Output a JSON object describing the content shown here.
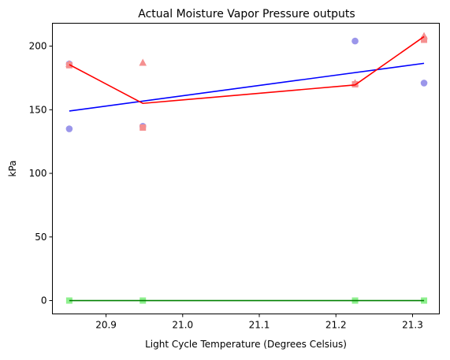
{
  "chart_data": {
    "type": "scatter",
    "title": "Actual Moisture Vapor Pressure outputs",
    "xlabel": "Light Cycle Temperature (Degrees Celsius)",
    "ylabel": "kPa",
    "xlim": [
      20.83,
      21.335
    ],
    "ylim": [
      -10.5,
      218
    ],
    "xticks": [
      20.9,
      21.0,
      21.1,
      21.2,
      21.3
    ],
    "xtick_labels": [
      "20.9",
      "21.0",
      "21.1",
      "21.2",
      "21.3"
    ],
    "yticks": [
      0,
      50,
      100,
      150,
      200
    ],
    "ytick_labels": [
      "0",
      "50",
      "100",
      "150",
      "200"
    ],
    "grid": false,
    "legend": "none",
    "series": [
      {
        "kind": "scatter",
        "marker": "circle",
        "color": "#9b96ea",
        "x": [
          20.852,
          20.852,
          20.948,
          21.225,
          21.315
        ],
        "y": [
          186,
          135,
          137,
          204,
          171
        ]
      },
      {
        "kind": "scatter",
        "marker": "triangle",
        "color": "#f59090",
        "x": [
          20.852,
          20.948,
          21.225,
          21.315
        ],
        "y": [
          186,
          187,
          171,
          208
        ]
      },
      {
        "kind": "scatter",
        "marker": "square",
        "color": "#f59090",
        "x": [
          20.852,
          20.948,
          21.225,
          21.315
        ],
        "y": [
          185,
          136,
          170,
          205
        ]
      },
      {
        "kind": "scatter",
        "marker": "square",
        "color": "#8ff08f",
        "x": [
          20.852,
          20.948,
          21.225,
          21.315
        ],
        "y": [
          0,
          0,
          0,
          0
        ]
      },
      {
        "kind": "line",
        "color": "#0000ff",
        "x": [
          20.852,
          21.315
        ],
        "y": [
          149,
          186.5
        ]
      },
      {
        "kind": "line",
        "color": "#ff0000",
        "x": [
          20.852,
          20.948,
          21.225,
          21.315
        ],
        "y": [
          185.5,
          155,
          169.5,
          207.5
        ]
      },
      {
        "kind": "line",
        "color": "#008000",
        "x": [
          20.852,
          21.315
        ],
        "y": [
          0,
          0
        ]
      }
    ]
  }
}
